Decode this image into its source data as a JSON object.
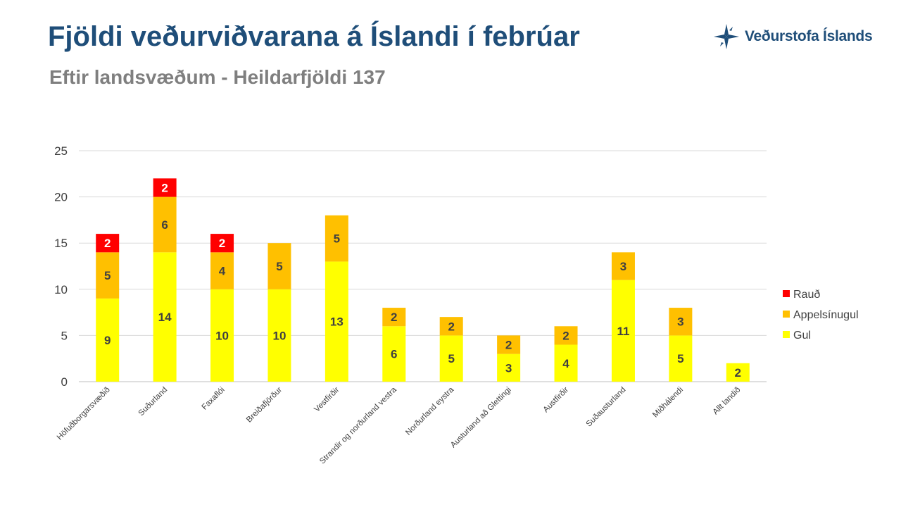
{
  "header": {
    "title": "Fjöldi veðurviðvarana á Íslandi í febrúar",
    "subtitle": "Eftir landsvæðum - Heildarfjöldi 137",
    "logo_text": "Veðurstofa Íslands"
  },
  "chart_data": {
    "type": "bar",
    "stacked": true,
    "title": "Fjöldi veðurviðvarana á Íslandi í febrúar",
    "subtitle": "Eftir landsvæðum - Heildarfjöldi 137",
    "xlabel": "",
    "ylabel": "",
    "ylim": [
      0,
      25
    ],
    "yticks": [
      0,
      5,
      10,
      15,
      20,
      25
    ],
    "grid": true,
    "legend_position": "right",
    "categories": [
      "Höfuðborgarsvæðið",
      "Suðurland",
      "Faxaflói",
      "Breiðafjörður",
      "Vestfirðir",
      "Strandir og norðurland vestra",
      "Norðurland eystra",
      "Austurland að Glettingi",
      "Austfirðir",
      "Suðausturland",
      "Miðhálendi",
      "Allt landið"
    ],
    "series": [
      {
        "name": "Gul",
        "color": "#ffff00",
        "label_color": "#404040",
        "values": [
          9,
          14,
          10,
          10,
          13,
          6,
          5,
          3,
          4,
          11,
          5,
          2
        ]
      },
      {
        "name": "Appelsínugul",
        "color": "#ffc000",
        "label_color": "#404040",
        "values": [
          5,
          6,
          4,
          5,
          5,
          2,
          2,
          2,
          2,
          3,
          3,
          0
        ]
      },
      {
        "name": "Rauð",
        "color": "#ff0000",
        "label_color": "#ffffff",
        "values": [
          2,
          2,
          2,
          0,
          0,
          0,
          0,
          0,
          0,
          0,
          0,
          0
        ]
      }
    ],
    "legend_order": [
      "Rauð",
      "Appelsínugul",
      "Gul"
    ]
  }
}
